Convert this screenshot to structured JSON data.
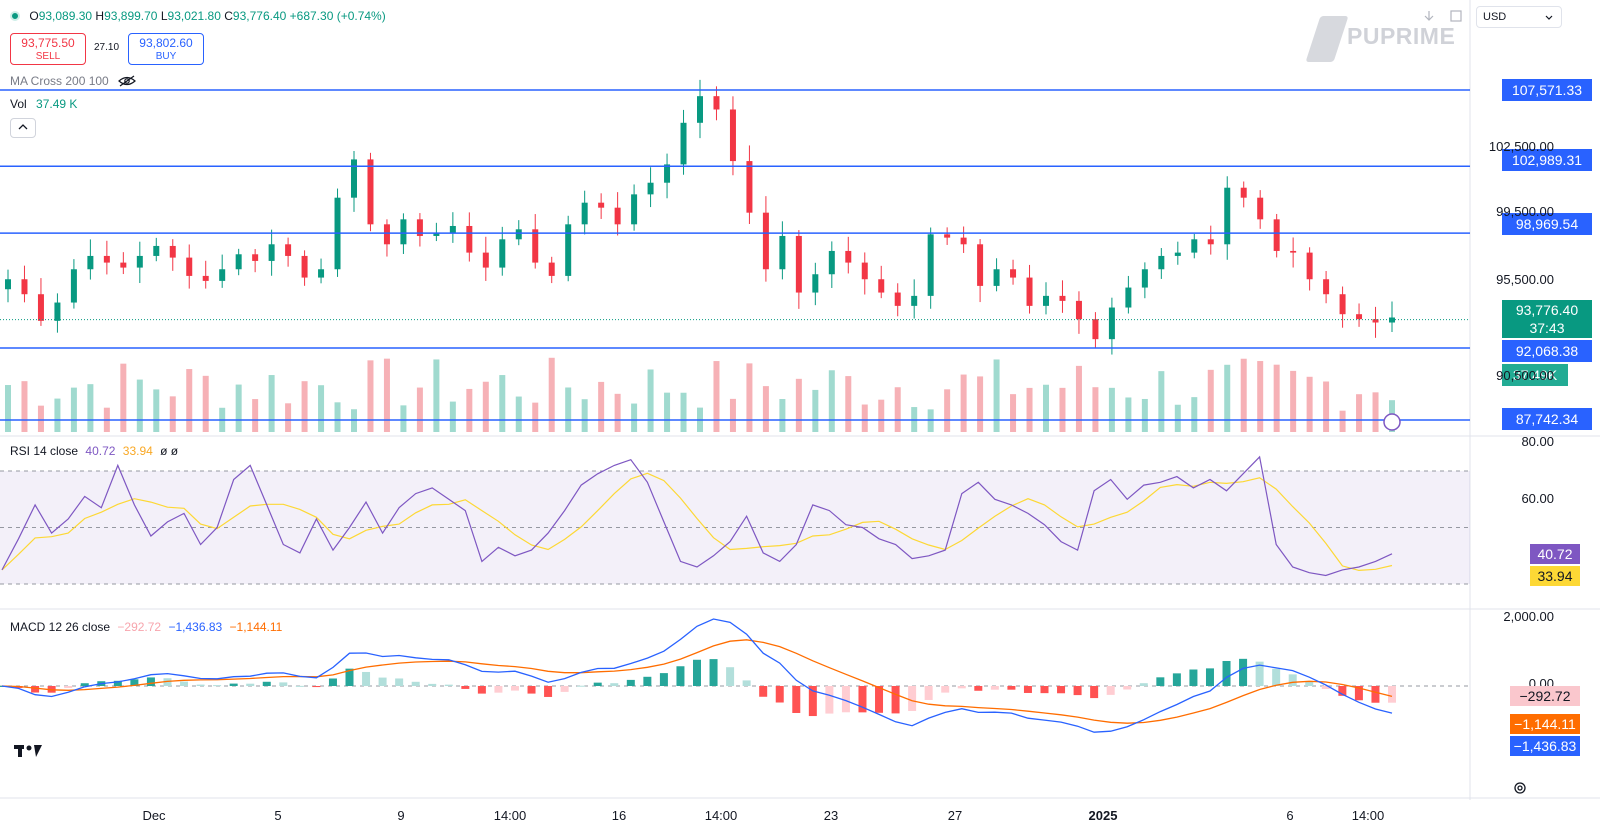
{
  "ohlc": {
    "o": "93,089.30",
    "h": "93,899.70",
    "l": "93,021.80",
    "c": "93,776.40",
    "change": "+687.30 (+0.74%)"
  },
  "trade": {
    "sell_price": "93,775.50",
    "sell_label": "SELL",
    "spread": "27.10",
    "buy_price": "93,802.60",
    "buy_label": "BUY"
  },
  "indicators": {
    "ma_label": "MA Cross 200 100",
    "vol_label": "Vol",
    "vol_value": "37.49 K",
    "rsi_label": "RSI 14 close",
    "rsi_value": "40.72",
    "rsi_ma": "33.94",
    "rsi_extra": "ø ø",
    "macd_label": "MACD 12 26 close",
    "macd_hist": "−292.72",
    "macd_line": "−1,436.83",
    "macd_signal": "−1,144.11"
  },
  "header": {
    "currency": "USD",
    "logo": "PUPRIME"
  },
  "levels": {
    "l1": "107,571.33",
    "l2": "102,989.31",
    "l3": "98,969.54",
    "l4": "92,068.38",
    "l5": "87,742.34",
    "current_price": "93,776.40",
    "countdown": "37:43",
    "volume_tag": "37.49K"
  },
  "price_axis": {
    "a": "102,500.00",
    "b": "99,500.00",
    "c": "95,500.00",
    "d": "90,500.00"
  },
  "rsi_axis": {
    "a": "80.00",
    "b": "60.00"
  },
  "rsi_tags": {
    "rsi": "40.72",
    "ma": "33.94"
  },
  "macd_axis": {
    "a": "2,000.00",
    "b": "0.00"
  },
  "macd_tags": {
    "hist": "−292.72",
    "signal": "−1,144.11",
    "macd": "−1,436.83"
  },
  "time_axis": {
    "t1": "Dec",
    "t2": "5",
    "t3": "9",
    "t4": "14:00",
    "t5": "16",
    "t6": "14:00",
    "t7": "23",
    "t8": "27",
    "t9": "2025",
    "t10": "6",
    "t11": "14:00"
  },
  "colors": {
    "up": "#089981",
    "down": "#f23645",
    "level": "#2962ff",
    "rsi": "#7e57c2",
    "rsi_ma": "#fdd835",
    "macd": "#2962ff",
    "signal": "#ff6d00"
  },
  "icons": [
    "eye-off-icon",
    "chevron-up-icon",
    "download-icon",
    "fullscreen-icon",
    "chevron-down-icon",
    "settings-icon",
    "tradingview-logo"
  ],
  "chart_data": {
    "type": "candlestick",
    "price_series": [
      96200,
      95300,
      93700,
      94800,
      96800,
      97600,
      97200,
      96900,
      97600,
      98200,
      97500,
      96400,
      96100,
      96800,
      97700,
      97300,
      98300,
      97600,
      96300,
      96800,
      101100,
      103400,
      99500,
      98300,
      99800,
      98800,
      99000,
      99400,
      97800,
      96900,
      98600,
      99200,
      97200,
      96400,
      99500,
      100800,
      100500,
      99500,
      101300,
      102000,
      103100,
      105600,
      107200,
      106400,
      103300,
      100200,
      96800,
      98800,
      95400,
      96500,
      97900,
      97200,
      96200,
      95400,
      94600,
      95200,
      98900,
      98700,
      98300,
      95800,
      96800,
      96300,
      94600,
      95200,
      94900,
      93800,
      92600,
      94500,
      95700,
      96800,
      97600,
      97800,
      98600,
      98300,
      101700,
      101100,
      99800,
      97900,
      97800,
      96200,
      95300,
      94100,
      93800,
      93600,
      93900
    ],
    "rsi_series": [
      35,
      46,
      58,
      48,
      53,
      61,
      57,
      72,
      58,
      47,
      52,
      55,
      44,
      50,
      67,
      72,
      58,
      44,
      41,
      53,
      42,
      50,
      59,
      48,
      57,
      62,
      64,
      60,
      56,
      38,
      43,
      40,
      42,
      48,
      56,
      65,
      69,
      72,
      74,
      66,
      52,
      38,
      36,
      40,
      45,
      54,
      41,
      38,
      44,
      58,
      56,
      51,
      50,
      46,
      44,
      39,
      40,
      42,
      62,
      66,
      60,
      58,
      55,
      51,
      45,
      42,
      63,
      67,
      60,
      65,
      66,
      68,
      64,
      67,
      63,
      69,
      75,
      44,
      36,
      34,
      33,
      35,
      36,
      38,
      40.7
    ],
    "rsi_ma": 33.94,
    "macd_hist": -292.72,
    "macd_line": -1436.83,
    "macd_signal": -1144.11,
    "volume_last": "37.49K"
  }
}
